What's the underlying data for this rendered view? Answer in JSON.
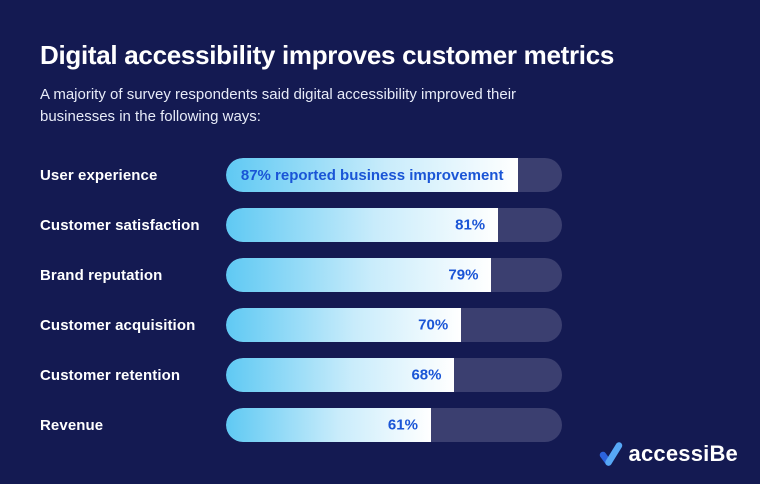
{
  "header": {
    "title": "Digital accessibility improves customer metrics",
    "subtitle_lines": [
      "A majority of survey respondents said digital accessibility improved their",
      "businesses in the following ways:"
    ]
  },
  "chart_data": {
    "type": "bar",
    "orientation": "horizontal",
    "title": "Digital accessibility improves customer metrics",
    "subtitle": "A majority of survey respondents said digital accessibility improved their businesses in the following ways:",
    "categories": [
      "User experience",
      "Customer satisfaction",
      "Brand reputation",
      "Customer acquisition",
      "Customer retention",
      "Revenue"
    ],
    "values": [
      87,
      81,
      79,
      70,
      68,
      61
    ],
    "bar_labels": [
      "87% reported business improvement",
      "81%",
      "79%",
      "70%",
      "68%",
      "61%"
    ],
    "xlim": [
      0,
      100
    ],
    "grid": false,
    "legend": "none",
    "colors": {
      "background": "#141A52",
      "track": "#3B3F70",
      "fill_start": "#5FC9F3",
      "fill_end": "#FFFFFF",
      "value_text": "#1A55D6",
      "label_text": "#FFFFFF"
    }
  },
  "logo": {
    "text": "accessiBe",
    "check_dark": "#2C63DD",
    "check_light": "#57A8F6"
  }
}
